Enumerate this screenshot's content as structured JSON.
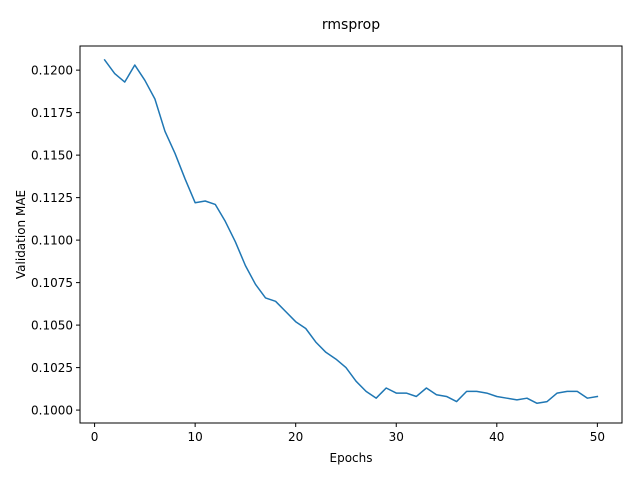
{
  "chart_data": {
    "type": "line",
    "title": "rmsprop",
    "xlabel": "Epochs",
    "ylabel": "Validation MAE",
    "xlim": [
      -1.45,
      52.45
    ],
    "ylim": [
      0.09924,
      0.12142
    ],
    "xticks": [
      0,
      10,
      20,
      30,
      40,
      50
    ],
    "yticks": [
      0.1,
      0.1025,
      0.105,
      0.1075,
      0.11,
      0.1125,
      0.115,
      0.1175,
      0.12
    ],
    "ytick_labels": [
      "0.1000",
      "0.1025",
      "0.1050",
      "0.1075",
      "0.1100",
      "0.1125",
      "0.1150",
      "0.1175",
      "0.1200"
    ],
    "grid": false,
    "colors": {
      "line": "#1f77b4"
    },
    "series": [
      {
        "x": [
          1,
          2,
          3,
          4,
          5,
          6,
          7,
          8,
          9,
          10,
          11,
          12,
          13,
          14,
          15,
          16,
          17,
          18,
          19,
          20,
          21,
          22,
          23,
          24,
          25,
          26,
          27,
          28,
          29,
          30,
          31,
          32,
          33,
          34,
          35,
          36,
          37,
          38,
          39,
          40,
          41,
          42,
          43,
          44,
          45,
          46,
          47,
          48,
          49,
          50
        ],
        "y": [
          0.1206,
          0.1198,
          0.1193,
          0.1203,
          0.1194,
          0.1183,
          0.1164,
          0.1151,
          0.1136,
          0.1122,
          0.1123,
          0.1121,
          0.1111,
          0.1099,
          0.1085,
          0.1074,
          0.1066,
          0.1064,
          0.1058,
          0.1052,
          0.1048,
          0.104,
          0.1034,
          0.103,
          0.1025,
          0.1017,
          0.1011,
          0.1007,
          0.1013,
          0.101,
          0.101,
          0.1008,
          0.1013,
          0.1009,
          0.1008,
          0.1005,
          0.1011,
          0.1011,
          0.101,
          0.1008,
          0.1007,
          0.1006,
          0.1007,
          0.1004,
          0.1005,
          0.101,
          0.1011,
          0.1011,
          0.1007,
          0.1008
        ]
      }
    ]
  }
}
